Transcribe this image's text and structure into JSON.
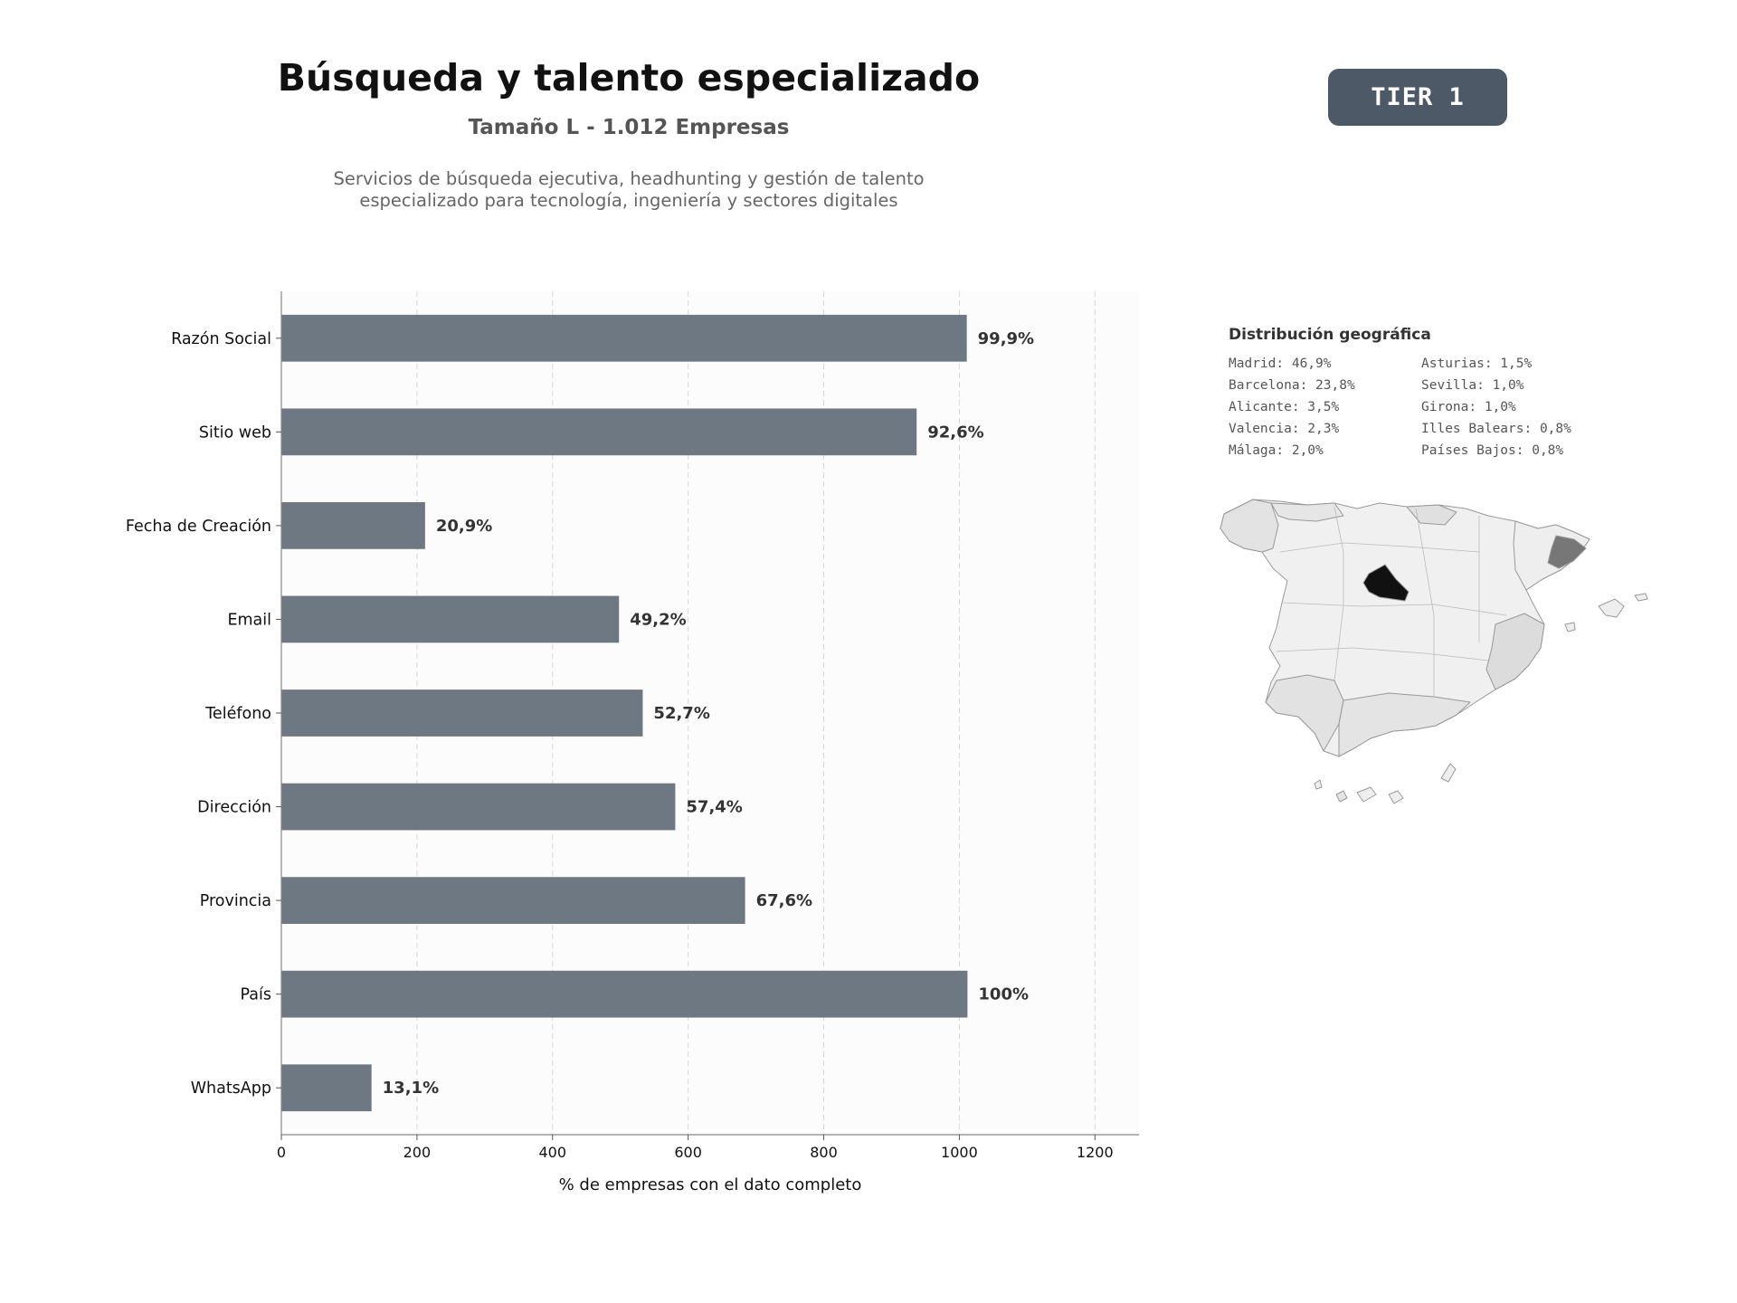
{
  "header": {
    "title": "Búsqueda y talento especializado",
    "subtitle": "Tamaño L - 1.012 Empresas",
    "description_lines": [
      "Servicios de búsqueda ejecutiva, headhunting y gestión de talento",
      "especializado para tecnología, ingeniería y sectores digitales"
    ],
    "tier_badge": "TIER 1"
  },
  "colors": {
    "bar": "#6e7882",
    "badge": "#4d5966",
    "map_highlight": "#111111",
    "map_secondary": "#777777",
    "map_base": "#f0f0f0"
  },
  "chart_data": {
    "type": "bar",
    "orientation": "horizontal",
    "categories": [
      "Razón Social",
      "Sitio web",
      "Fecha de Creación",
      "Email",
      "Teléfono",
      "Dirección",
      "Provincia",
      "País",
      "WhatsApp"
    ],
    "values": [
      1011,
      937,
      212,
      498,
      533,
      581,
      684,
      1012,
      133
    ],
    "value_labels": [
      "99,9%",
      "92,6%",
      "20,9%",
      "49,2%",
      "52,7%",
      "57,4%",
      "67,6%",
      "100%",
      "13,1%"
    ],
    "xlabel": "% de empresas con el dato completo",
    "ylabel": "",
    "xlim": [
      0,
      1265
    ],
    "xticks": [
      0,
      200,
      400,
      600,
      800,
      1000,
      1200
    ],
    "grid": "x-dashed"
  },
  "geo": {
    "title": "Distribución geográfica",
    "col1": [
      "Madrid: 46,9%",
      "Barcelona: 23,8%",
      "Alicante: 3,5%",
      "Valencia: 2,3%",
      "Málaga: 2,0%"
    ],
    "col2": [
      "Asturias: 1,5%",
      "Sevilla: 1,0%",
      "Girona: 1,0%",
      "Illes Balears: 0,8%",
      "Países Bajos: 0,8%"
    ]
  }
}
